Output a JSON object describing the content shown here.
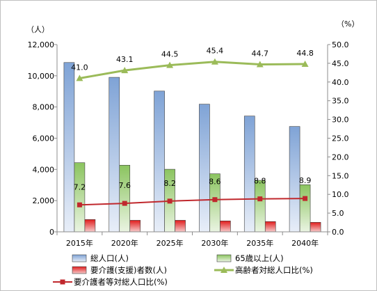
{
  "chart_data": {
    "type": "bar",
    "categories": [
      "2015年",
      "2020年",
      "2025年",
      "2030年",
      "2035年",
      "2040年"
    ],
    "y_left": {
      "unit_label": "（人）",
      "ticks": [
        "0",
        "2,000",
        "4,000",
        "6,000",
        "8,000",
        "10,000",
        "12,000"
      ],
      "min": 0,
      "max": 12000
    },
    "y_right": {
      "unit_label": "（%）",
      "ticks": [
        "0.0",
        "5.0",
        "10.0",
        "15.0",
        "20.0",
        "25.0",
        "30.0",
        "35.0",
        "40.0",
        "45.0",
        "50.0"
      ],
      "min": 0,
      "max": 50
    },
    "series": [
      {
        "name": "総人口(人)",
        "type": "bar",
        "axis": "left",
        "color": "#4f7fbf",
        "values": [
          10850,
          9900,
          9020,
          8180,
          7420,
          6750
        ]
      },
      {
        "name": "65歳以上(人)",
        "type": "bar",
        "axis": "left",
        "color": "#77a845",
        "values": [
          4430,
          4270,
          4010,
          3720,
          3300,
          3020
        ]
      },
      {
        "name": "要介護(支援)者数(人)",
        "type": "bar",
        "axis": "left",
        "color": "#c0504d",
        "values": [
          790,
          740,
          740,
          700,
          660,
          610
        ]
      },
      {
        "name": "高齢者対総人口比(%)",
        "type": "line",
        "axis": "right",
        "color": "#9bbb59",
        "marker": "triangle",
        "values": [
          41.0,
          43.1,
          44.5,
          45.4,
          44.7,
          44.8
        ],
        "labels": [
          "41.0",
          "43.1",
          "44.5",
          "45.4",
          "44.7",
          "44.8"
        ]
      },
      {
        "name": "要介護者等対総人口比(%)",
        "type": "line",
        "axis": "right",
        "color": "#c0282d",
        "marker": "square",
        "values": [
          7.2,
          7.6,
          8.2,
          8.6,
          8.8,
          8.9
        ],
        "labels": [
          "7.2",
          "7.6",
          "8.2",
          "8.6",
          "8.8",
          "8.9"
        ]
      }
    ],
    "legend_position": "bottom",
    "grid": false
  }
}
